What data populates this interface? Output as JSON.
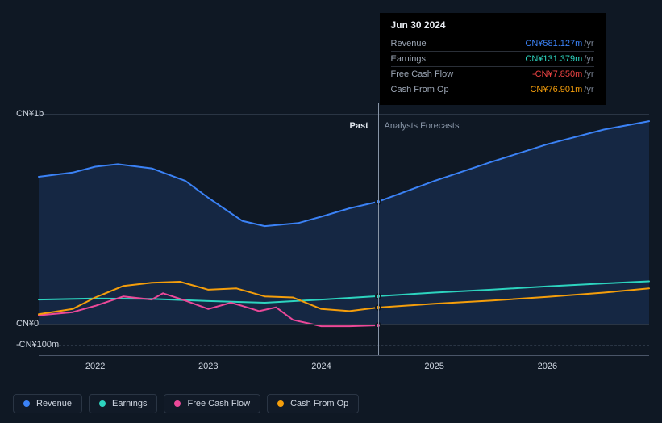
{
  "chart": {
    "type": "line",
    "background_color": "#0f1824",
    "grid_color": "#2a3544",
    "baseline_color": "#4a5568",
    "cursor_color": "#8895a7",
    "label_fontsize": 11,
    "y_axis": {
      "ticks": [
        {
          "value": 1000,
          "label": "CN¥1b",
          "style": "solid"
        },
        {
          "value": 0,
          "label": "CN¥0",
          "style": "solid"
        },
        {
          "value": -100,
          "label": "-CN¥100m",
          "style": "dashed"
        }
      ],
      "ymin": -150,
      "ymax": 1050
    },
    "x_axis": {
      "years": [
        2022,
        2023,
        2024,
        2025,
        2026
      ],
      "xmin": 2021.5,
      "xmax": 2026.9
    },
    "divider_x": 2024.5,
    "past_label": "Past",
    "forecast_label": "Analysts Forecasts",
    "series": [
      {
        "key": "revenue",
        "label": "Revenue",
        "color": "#3b82f6",
        "fill_opacity": 0.15,
        "points": [
          [
            2021.5,
            700
          ],
          [
            2021.8,
            720
          ],
          [
            2022.0,
            748
          ],
          [
            2022.2,
            760
          ],
          [
            2022.5,
            740
          ],
          [
            2022.8,
            680
          ],
          [
            2023.0,
            600
          ],
          [
            2023.3,
            490
          ],
          [
            2023.5,
            465
          ],
          [
            2023.8,
            480
          ],
          [
            2024.0,
            510
          ],
          [
            2024.25,
            550
          ],
          [
            2024.5,
            581
          ],
          [
            2025.0,
            680
          ],
          [
            2025.5,
            770
          ],
          [
            2026.0,
            855
          ],
          [
            2026.5,
            925
          ],
          [
            2026.9,
            965
          ]
        ]
      },
      {
        "key": "earnings",
        "label": "Earnings",
        "color": "#2dd4bf",
        "fill_opacity": 0,
        "points": [
          [
            2021.5,
            115
          ],
          [
            2022.0,
            120
          ],
          [
            2022.5,
            118
          ],
          [
            2023.0,
            108
          ],
          [
            2023.5,
            100
          ],
          [
            2024.0,
            115
          ],
          [
            2024.5,
            131
          ],
          [
            2025.0,
            148
          ],
          [
            2025.5,
            162
          ],
          [
            2026.0,
            178
          ],
          [
            2026.5,
            192
          ],
          [
            2026.9,
            202
          ]
        ]
      },
      {
        "key": "fcf",
        "label": "Free Cash Flow",
        "color": "#ec4899",
        "fill_opacity": 0,
        "points": [
          [
            2021.5,
            40
          ],
          [
            2021.8,
            55
          ],
          [
            2022.0,
            85
          ],
          [
            2022.25,
            130
          ],
          [
            2022.5,
            115
          ],
          [
            2022.6,
            145
          ],
          [
            2022.8,
            110
          ],
          [
            2023.0,
            70
          ],
          [
            2023.2,
            100
          ],
          [
            2023.3,
            85
          ],
          [
            2023.45,
            60
          ],
          [
            2023.6,
            78
          ],
          [
            2023.75,
            18
          ],
          [
            2024.0,
            -12
          ],
          [
            2024.25,
            -12
          ],
          [
            2024.5,
            -7.85
          ]
        ]
      },
      {
        "key": "cfo",
        "label": "Cash From Op",
        "color": "#f59e0b",
        "fill_opacity": 0,
        "points": [
          [
            2021.5,
            45
          ],
          [
            2021.8,
            70
          ],
          [
            2022.0,
            125
          ],
          [
            2022.25,
            180
          ],
          [
            2022.5,
            195
          ],
          [
            2022.75,
            200
          ],
          [
            2023.0,
            162
          ],
          [
            2023.25,
            168
          ],
          [
            2023.5,
            130
          ],
          [
            2023.75,
            125
          ],
          [
            2024.0,
            70
          ],
          [
            2024.25,
            60
          ],
          [
            2024.5,
            77
          ],
          [
            2025.0,
            95
          ],
          [
            2025.5,
            110
          ],
          [
            2026.0,
            128
          ],
          [
            2026.5,
            148
          ],
          [
            2026.9,
            168
          ]
        ]
      }
    ],
    "markers_at_x": 2024.5,
    "marker_values": {
      "revenue": 581,
      "earnings": 131,
      "fcf": -7.85,
      "cfo": 77
    }
  },
  "tooltip": {
    "date": "Jun 30 2024",
    "unit": "/yr",
    "rows": [
      {
        "label": "Revenue",
        "value": "CN¥581.127m",
        "color": "#3b82f6"
      },
      {
        "label": "Earnings",
        "value": "CN¥131.379m",
        "color": "#2dd4bf"
      },
      {
        "label": "Free Cash Flow",
        "value": "-CN¥7.850m",
        "color": "#ef4444"
      },
      {
        "label": "Cash From Op",
        "value": "CN¥76.901m",
        "color": "#f59e0b"
      }
    ]
  },
  "legend": [
    {
      "key": "revenue",
      "label": "Revenue",
      "color": "#3b82f6"
    },
    {
      "key": "earnings",
      "label": "Earnings",
      "color": "#2dd4bf"
    },
    {
      "key": "fcf",
      "label": "Free Cash Flow",
      "color": "#ec4899"
    },
    {
      "key": "cfo",
      "label": "Cash From Op",
      "color": "#f59e0b"
    }
  ]
}
